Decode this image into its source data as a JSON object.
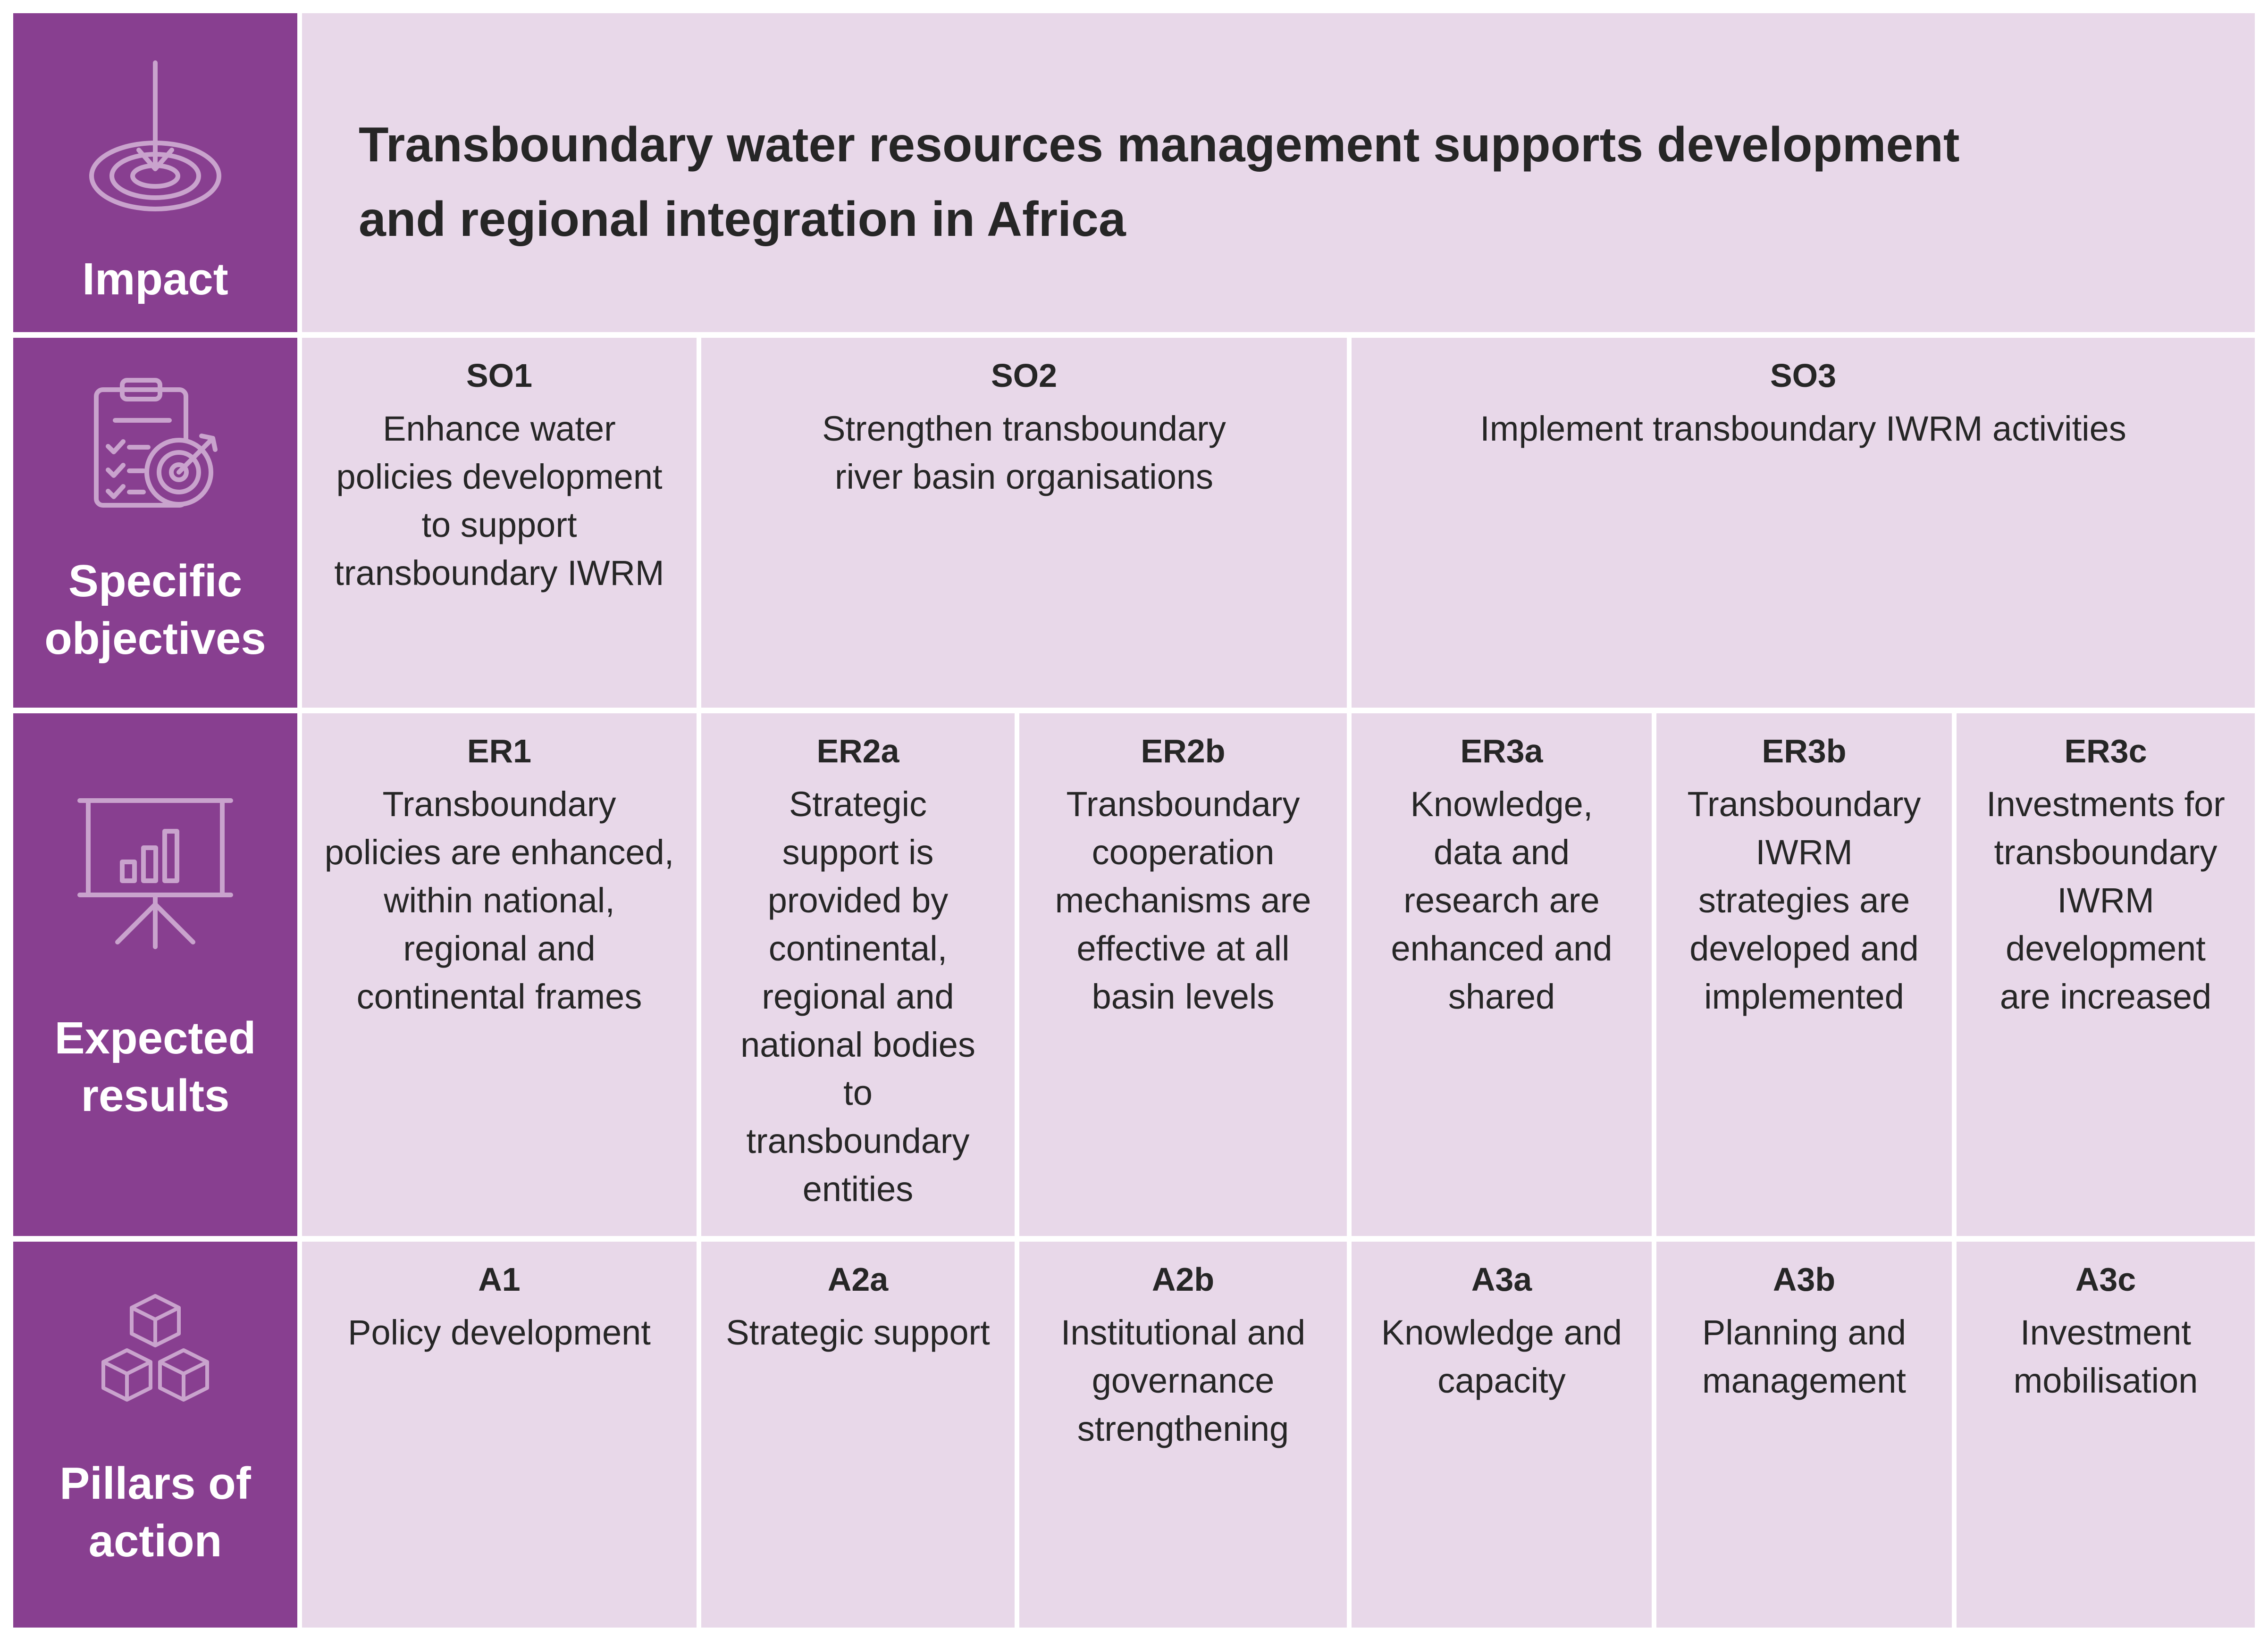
{
  "colors": {
    "sidebar": "#883f90",
    "cell": "#e8d8e9",
    "text": "#262626"
  },
  "rows": {
    "impact": {
      "label": "Impact",
      "icon": "target-arrow-icon"
    },
    "objectives": {
      "label": [
        "Specific",
        "objectives"
      ],
      "icon": "clipboard-target-icon"
    },
    "results": {
      "label": [
        "Expected",
        "results"
      ],
      "icon": "presentation-chart-icon"
    },
    "pillars": {
      "label": [
        "Pillars of",
        "action"
      ],
      "icon": "stacked-cubes-icon"
    }
  },
  "impact_text": [
    "Transboundary water resources management supports development",
    "and regional integration in Africa"
  ],
  "objectives": [
    {
      "code": "SO1",
      "text": [
        "Enhance water",
        "policies development",
        "to support",
        "transboundary IWRM"
      ]
    },
    {
      "code": "SO2",
      "text": [
        "Strengthen  transboundary",
        "river basin organisations"
      ]
    },
    {
      "code": "SO3",
      "text": [
        "Implement transboundary IWRM activities"
      ]
    }
  ],
  "results": [
    {
      "code": "ER1",
      "text": [
        "Transboundary",
        "policies are enhanced,",
        "within national,",
        "regional and",
        "continental frames"
      ]
    },
    {
      "code": "ER2a",
      "text": [
        "Strategic",
        "support is",
        "provided by",
        "continental,",
        "regional and",
        "national bodies",
        "to",
        "transboundary",
        "entities"
      ]
    },
    {
      "code": "ER2b",
      "text": [
        "Transboundary",
        "cooperation",
        "mechanisms are",
        "effective at all",
        "basin levels"
      ]
    },
    {
      "code": "ER3a",
      "text": [
        "Knowledge,",
        "data and",
        "research are",
        "enhanced and",
        "shared"
      ]
    },
    {
      "code": "ER3b",
      "text": [
        "Transboundary",
        "IWRM",
        "strategies are",
        "developed and",
        "implemented"
      ]
    },
    {
      "code": "ER3c",
      "text": [
        "Investments for",
        "transboundary",
        "IWRM",
        "development",
        "are increased"
      ]
    }
  ],
  "pillars": [
    {
      "code": "A1",
      "text": [
        "Policy development"
      ]
    },
    {
      "code": "A2a",
      "text": [
        "Strategic support"
      ]
    },
    {
      "code": "A2b",
      "text": [
        "Institutional and",
        "governance",
        "strengthening"
      ]
    },
    {
      "code": "A3a",
      "text": [
        "Knowledge and",
        "capacity"
      ]
    },
    {
      "code": "A3b",
      "text": [
        "Planning and",
        "management"
      ]
    },
    {
      "code": "A3c",
      "text": [
        "Investment",
        "mobilisation"
      ]
    }
  ]
}
